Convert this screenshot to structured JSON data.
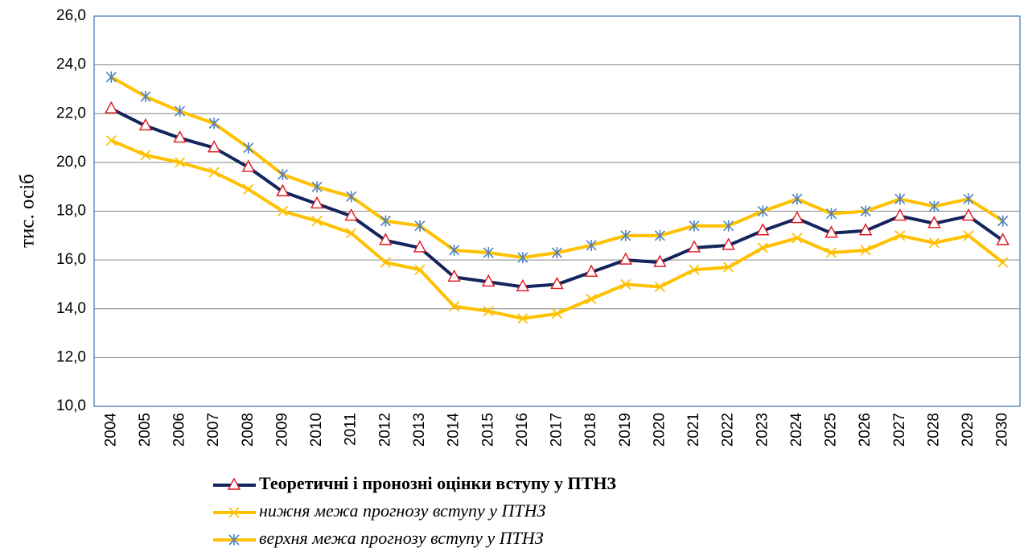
{
  "chart_data": {
    "type": "line",
    "y_label": "тис. осіб",
    "categories": [
      "2004",
      "2005",
      "2006",
      "2007",
      "2008",
      "2009",
      "2010",
      "2011",
      "2012",
      "2013",
      "2014",
      "2015",
      "2016",
      "2017",
      "2018",
      "2019",
      "2020",
      "2021",
      "2022",
      "2023",
      "2024",
      "2025",
      "2026",
      "2027",
      "2028",
      "2029",
      "2030"
    ],
    "ylim": [
      10,
      26
    ],
    "yticks": [
      {
        "value": 10,
        "label": "10,0"
      },
      {
        "value": 12,
        "label": "12,0"
      },
      {
        "value": 14,
        "label": "14,0"
      },
      {
        "value": 16,
        "label": "16,0"
      },
      {
        "value": 18,
        "label": "18,0"
      },
      {
        "value": 20,
        "label": "20,0"
      },
      {
        "value": 22,
        "label": "22,0"
      },
      {
        "value": 24,
        "label": "24,0"
      },
      {
        "value": 26,
        "label": "26,0"
      }
    ],
    "grid": true,
    "legend": "bottom",
    "series": [
      {
        "name": "Теоретичні і пронозні оцінки вступу у ПТНЗ",
        "color": "#14245c",
        "marker": "triangle",
        "marker_color": "#e0141e",
        "font_style": "bold",
        "values": [
          22.2,
          21.5,
          21.0,
          20.6,
          19.8,
          18.8,
          18.3,
          17.8,
          16.8,
          16.5,
          15.3,
          15.1,
          14.9,
          15.0,
          15.5,
          16.0,
          15.9,
          16.5,
          16.6,
          17.2,
          17.7,
          17.1,
          17.2,
          17.8,
          17.5,
          17.8,
          16.8
        ]
      },
      {
        "name": "нижня межа прогнозу вступу у ПТНЗ",
        "color": "#ffc000",
        "marker": "x",
        "marker_color": "#ffc000",
        "font_style": "italic",
        "values": [
          20.9,
          20.3,
          20.0,
          19.6,
          18.9,
          18.0,
          17.6,
          17.1,
          15.9,
          15.6,
          14.1,
          13.9,
          13.6,
          13.8,
          14.4,
          15.0,
          14.9,
          15.6,
          15.7,
          16.5,
          16.9,
          16.3,
          16.4,
          17.0,
          16.7,
          17.0,
          15.9
        ]
      },
      {
        "name": "верхня межа прогнозу вступу у ПТНЗ",
        "color": "#ffc000",
        "marker": "star",
        "marker_color": "#4f81bd",
        "font_style": "italic",
        "values": [
          23.5,
          22.7,
          22.1,
          21.6,
          20.6,
          19.5,
          19.0,
          18.6,
          17.6,
          17.4,
          16.4,
          16.3,
          16.1,
          16.3,
          16.6,
          17.0,
          17.0,
          17.4,
          17.4,
          18.0,
          18.5,
          17.9,
          18.0,
          18.5,
          18.2,
          18.5,
          17.6
        ]
      }
    ]
  }
}
